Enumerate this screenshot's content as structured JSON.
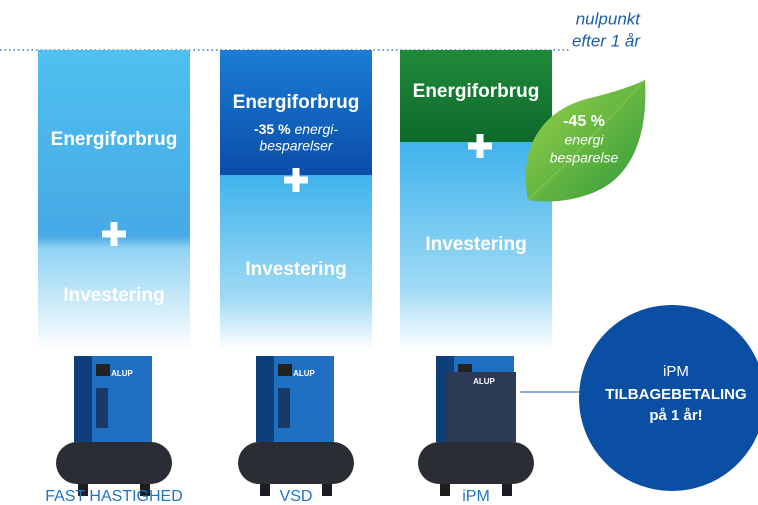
{
  "annotation": {
    "lines": [
      "nulpunkt",
      "efter 1 år"
    ]
  },
  "columns": [
    {
      "energy": "Energiforbrug",
      "investment": "Investering",
      "caption": "FAST HASTIGHED",
      "brand": "ALUP"
    },
    {
      "energy": "Energiforbrug",
      "saving": {
        "percent": "-35 %",
        "lines": [
          "energi-",
          "besparelser"
        ]
      },
      "investment": "Investering",
      "caption": "VSD",
      "brand": "ALUP"
    },
    {
      "energy": "Energiforbrug",
      "investment": "Investering",
      "caption": "iPM",
      "brand": "ALUP"
    }
  ],
  "leaf": {
    "percent": "-45 %",
    "lines": [
      "energi",
      "besparelse"
    ]
  },
  "badge": {
    "lines": [
      "iPM",
      "TILBAGEBETALING",
      "på 1 år!"
    ]
  }
}
